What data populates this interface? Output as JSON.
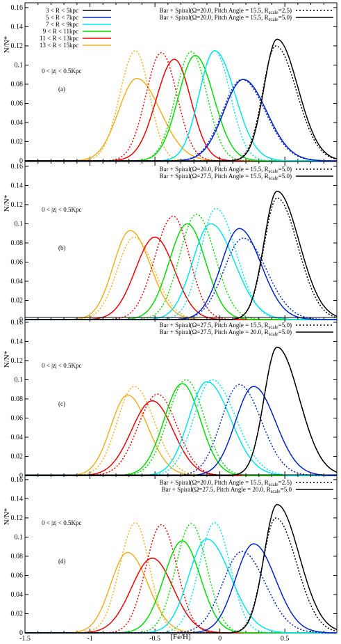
{
  "figure": {
    "xlabel": "[Fe/H]",
    "ylabel": "N/N*",
    "region": "0 < |z| < 0.5Kpc",
    "xticks": [
      "-1.5",
      "-1",
      "-0.5",
      "0",
      "0.5"
    ],
    "yticks": [
      "0",
      "0.02",
      "0.04",
      "0.06",
      "0.08",
      "0.1",
      "0.12",
      "0.14",
      "0.16"
    ],
    "colors": {
      "3-5": "#000000",
      "5-7": "#0022cc",
      "7-9": "#00e5ee",
      "9-11": "#00dd00",
      "11-13": "#ee0000",
      "13-15": "#f0b020"
    },
    "radius_legend": [
      {
        "key": "3-5",
        "label": "3 < R < 5kpc"
      },
      {
        "key": "5-7",
        "label": "5 < R < 7kpc"
      },
      {
        "key": "7-9",
        "label": "7 < R < 9kpc"
      },
      {
        "key": "9-11",
        "label": "9 < R < 11kpc"
      },
      {
        "key": "11-13",
        "label": "11 < R < 13kpc"
      },
      {
        "key": "13-15",
        "label": "13 < R < 15kpc"
      }
    ]
  },
  "chart_data": [
    {
      "type": "line",
      "panel_label": "(a)",
      "xlim": [
        -1.5,
        0.9
      ],
      "ylim": [
        0,
        0.165
      ],
      "legend": [
        {
          "style": "dotted",
          "text": "Bar + Spiral(Ω=20.0, Pitch Angle = 15.5, R",
          "sub": "scale",
          "tail": "=2.5)"
        },
        {
          "style": "solid",
          "text": "Bar + Spiral(Ω=20.0, Pitch Angle = 15.5, R",
          "sub": "scale",
          "tail": "=5.0)"
        }
      ],
      "series": [
        {
          "key": "13-15",
          "style": "dotted",
          "mu": -0.65,
          "peak": 0.115,
          "sigma": 0.12,
          "skew": 0.9
        },
        {
          "key": "13-15",
          "style": "solid",
          "mu": -0.64,
          "peak": 0.086,
          "sigma": 0.14,
          "skew": 1.3
        },
        {
          "key": "11-13",
          "style": "dotted",
          "mu": -0.45,
          "peak": 0.113,
          "sigma": 0.12,
          "skew": 1.0
        },
        {
          "key": "11-13",
          "style": "solid",
          "mu": -0.35,
          "peak": 0.106,
          "sigma": 0.14,
          "skew": 0.9
        },
        {
          "key": "9-11",
          "style": "dotted",
          "mu": -0.22,
          "peak": 0.114,
          "sigma": 0.12,
          "skew": 1.0
        },
        {
          "key": "9-11",
          "style": "solid",
          "mu": -0.19,
          "peak": 0.11,
          "sigma": 0.13,
          "skew": 1.1
        },
        {
          "key": "7-9",
          "style": "dotted",
          "mu": -0.04,
          "peak": 0.115,
          "sigma": 0.12,
          "skew": 1.0
        },
        {
          "key": "7-9",
          "style": "solid",
          "mu": -0.04,
          "peak": 0.115,
          "sigma": 0.12,
          "skew": 1.3
        },
        {
          "key": "5-7",
          "style": "dotted",
          "mu": 0.17,
          "peak": 0.085,
          "sigma": 0.15,
          "skew": 1.2
        },
        {
          "key": "5-7",
          "style": "solid",
          "mu": 0.18,
          "peak": 0.085,
          "sigma": 0.15,
          "skew": 1.2
        },
        {
          "key": "3-5",
          "style": "dotted",
          "mu": 0.43,
          "peak": 0.12,
          "sigma": 0.1,
          "skew": 1.6
        },
        {
          "key": "3-5",
          "style": "solid",
          "mu": 0.44,
          "peak": 0.127,
          "sigma": 0.1,
          "skew": 1.6
        }
      ]
    },
    {
      "type": "line",
      "panel_label": "(b)",
      "xlim": [
        -1.5,
        0.9
      ],
      "ylim": [
        0,
        0.165
      ],
      "legend": [
        {
          "style": "dotted",
          "text": "Bar + Spiral(Ω=20.0, Pitch Angle = 15.5, R",
          "sub": "scale",
          "tail": "=5.0)"
        },
        {
          "style": "solid",
          "text": "Bar + Spiral(Ω=27.5, Pitch Angle = 15.5, R",
          "sub": "scale",
          "tail": "=5.0)"
        }
      ],
      "series": [
        {
          "key": "13-15",
          "style": "dotted",
          "mu": -0.66,
          "peak": 0.086,
          "sigma": 0.13,
          "skew": 1.2
        },
        {
          "key": "13-15",
          "style": "solid",
          "mu": -0.69,
          "peak": 0.093,
          "sigma": 0.13,
          "skew": 1.2
        },
        {
          "key": "11-13",
          "style": "dotted",
          "mu": -0.36,
          "peak": 0.108,
          "sigma": 0.14,
          "skew": 0.9
        },
        {
          "key": "11-13",
          "style": "solid",
          "mu": -0.5,
          "peak": 0.086,
          "sigma": 0.15,
          "skew": 1.0
        },
        {
          "key": "9-11",
          "style": "dotted",
          "mu": -0.18,
          "peak": 0.11,
          "sigma": 0.13,
          "skew": 1.1
        },
        {
          "key": "9-11",
          "style": "solid",
          "mu": -0.25,
          "peak": 0.1,
          "sigma": 0.14,
          "skew": 1.0
        },
        {
          "key": "7-9",
          "style": "dotted",
          "mu": -0.03,
          "peak": 0.116,
          "sigma": 0.12,
          "skew": 1.3
        },
        {
          "key": "7-9",
          "style": "solid",
          "mu": -0.07,
          "peak": 0.1,
          "sigma": 0.14,
          "skew": 1.3
        },
        {
          "key": "5-7",
          "style": "dotted",
          "mu": 0.18,
          "peak": 0.085,
          "sigma": 0.15,
          "skew": 1.2
        },
        {
          "key": "5-7",
          "style": "solid",
          "mu": 0.15,
          "peak": 0.095,
          "sigma": 0.14,
          "skew": 1.2
        },
        {
          "key": "3-5",
          "style": "dotted",
          "mu": 0.44,
          "peak": 0.127,
          "sigma": 0.1,
          "skew": 1.6
        },
        {
          "key": "3-5",
          "style": "solid",
          "mu": 0.44,
          "peak": 0.134,
          "sigma": 0.1,
          "skew": 1.7
        }
      ]
    },
    {
      "type": "line",
      "panel_label": "(c)",
      "xlim": [
        -1.5,
        0.9
      ],
      "ylim": [
        0,
        0.165
      ],
      "legend": [
        {
          "style": "dotted",
          "text": "Bar + Spiral(Ω=27.5, Pitch Angle = 15.5, R",
          "sub": "scale",
          "tail": "=5.0)"
        },
        {
          "style": "solid",
          "text": "Bar + Spiral(Ω=27.5, Pitch Angle = 20.0, R",
          "sub": "scale",
          "tail": "=5.0)"
        }
      ],
      "series": [
        {
          "key": "13-15",
          "style": "dotted",
          "mu": -0.66,
          "peak": 0.093,
          "sigma": 0.13,
          "skew": 1.2
        },
        {
          "key": "13-15",
          "style": "solid",
          "mu": -0.71,
          "peak": 0.084,
          "sigma": 0.13,
          "skew": 1.2
        },
        {
          "key": "11-13",
          "style": "dotted",
          "mu": -0.48,
          "peak": 0.085,
          "sigma": 0.15,
          "skew": 1.0
        },
        {
          "key": "11-13",
          "style": "solid",
          "mu": -0.52,
          "peak": 0.078,
          "sigma": 0.16,
          "skew": 1.0
        },
        {
          "key": "9-11",
          "style": "dotted",
          "mu": -0.26,
          "peak": 0.1,
          "sigma": 0.14,
          "skew": 1.0
        },
        {
          "key": "9-11",
          "style": "solid",
          "mu": -0.29,
          "peak": 0.096,
          "sigma": 0.14,
          "skew": 1.0
        },
        {
          "key": "7-9",
          "style": "dotted",
          "mu": -0.06,
          "peak": 0.1,
          "sigma": 0.14,
          "skew": 1.3
        },
        {
          "key": "7-9",
          "style": "solid",
          "mu": -0.1,
          "peak": 0.098,
          "sigma": 0.14,
          "skew": 1.3
        },
        {
          "key": "5-7",
          "style": "dotted",
          "mu": 0.15,
          "peak": 0.095,
          "sigma": 0.14,
          "skew": 1.2
        },
        {
          "key": "5-7",
          "style": "solid",
          "mu": 0.26,
          "peak": 0.093,
          "sigma": 0.14,
          "skew": 1.2
        },
        {
          "key": "3-5",
          "style": "dotted",
          "mu": 0.44,
          "peak": 0.134,
          "sigma": 0.1,
          "skew": 1.7
        },
        {
          "key": "3-5",
          "style": "solid",
          "mu": 0.44,
          "peak": 0.134,
          "sigma": 0.1,
          "skew": 1.7
        }
      ]
    },
    {
      "type": "line",
      "panel_label": "(d)",
      "xlim": [
        -1.5,
        0.9
      ],
      "ylim": [
        0,
        0.165
      ],
      "legend": [
        {
          "style": "dotted",
          "text": "Bar + Spiral(Ω=20.0, Pitch Angle = 15.5, R",
          "sub": "scale",
          "tail": "=2.5)"
        },
        {
          "style": "solid",
          "text": "Bar + Spiral(Ω=27.5, Pitch Angle = 20.0, R",
          "sub": "scale",
          "tail": "=5.0"
        }
      ],
      "series": [
        {
          "key": "13-15",
          "style": "dotted",
          "mu": -0.65,
          "peak": 0.115,
          "sigma": 0.12,
          "skew": 0.9
        },
        {
          "key": "13-15",
          "style": "solid",
          "mu": -0.71,
          "peak": 0.084,
          "sigma": 0.13,
          "skew": 1.2
        },
        {
          "key": "11-13",
          "style": "dotted",
          "mu": -0.45,
          "peak": 0.113,
          "sigma": 0.12,
          "skew": 1.0
        },
        {
          "key": "11-13",
          "style": "solid",
          "mu": -0.52,
          "peak": 0.078,
          "sigma": 0.16,
          "skew": 1.0
        },
        {
          "key": "9-11",
          "style": "dotted",
          "mu": -0.22,
          "peak": 0.114,
          "sigma": 0.12,
          "skew": 1.0
        },
        {
          "key": "9-11",
          "style": "solid",
          "mu": -0.29,
          "peak": 0.096,
          "sigma": 0.14,
          "skew": 1.0
        },
        {
          "key": "7-9",
          "style": "dotted",
          "mu": -0.04,
          "peak": 0.115,
          "sigma": 0.12,
          "skew": 1.0
        },
        {
          "key": "7-9",
          "style": "solid",
          "mu": -0.1,
          "peak": 0.098,
          "sigma": 0.14,
          "skew": 1.3
        },
        {
          "key": "5-7",
          "style": "dotted",
          "mu": 0.17,
          "peak": 0.085,
          "sigma": 0.15,
          "skew": 1.2
        },
        {
          "key": "5-7",
          "style": "solid",
          "mu": 0.26,
          "peak": 0.093,
          "sigma": 0.14,
          "skew": 1.2
        },
        {
          "key": "3-5",
          "style": "dotted",
          "mu": 0.43,
          "peak": 0.12,
          "sigma": 0.1,
          "skew": 1.6
        },
        {
          "key": "3-5",
          "style": "solid",
          "mu": 0.44,
          "peak": 0.134,
          "sigma": 0.1,
          "skew": 1.7
        }
      ]
    }
  ]
}
